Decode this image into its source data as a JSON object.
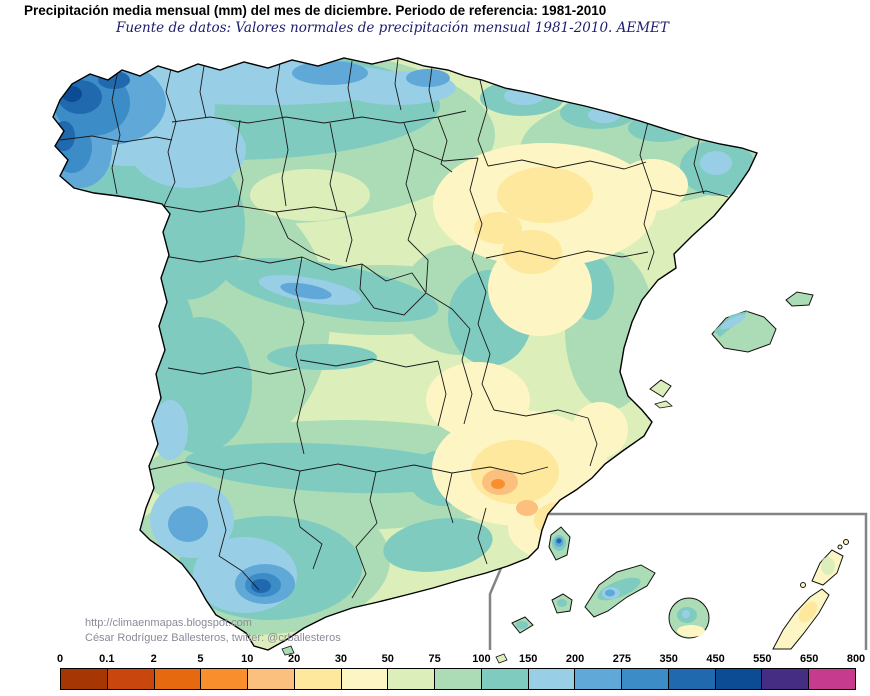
{
  "header": {
    "title": "Precipitación media mensual (mm) del mes de diciembre. Periodo de referencia: 1981-2010",
    "subtitle": "Fuente de datos: Valores normales de precipitación mensual 1981-2010. AEMET"
  },
  "credits": {
    "url": "http://climaenmapas.blogspot.com",
    "author": "César Rodríguez Ballesteros, twitter: @crballesteros"
  },
  "legend": {
    "unit": "mm",
    "tick_labels": [
      "0",
      "0.1",
      "2",
      "5",
      "10",
      "20",
      "30",
      "50",
      "75",
      "100",
      "150",
      "200",
      "275",
      "350",
      "450",
      "550",
      "650",
      "800"
    ],
    "colors": [
      "#a63603",
      "#c9470e",
      "#e66910",
      "#f98f2c",
      "#fcc07e",
      "#fde89d",
      "#fdf6c4",
      "#dcefbb",
      "#abdcb6",
      "#7fcbbf",
      "#99cfe6",
      "#5fa8d8",
      "#3c8cc8",
      "#2169ae",
      "#0b4c94",
      "#452d83",
      "#c73b8f"
    ]
  }
}
